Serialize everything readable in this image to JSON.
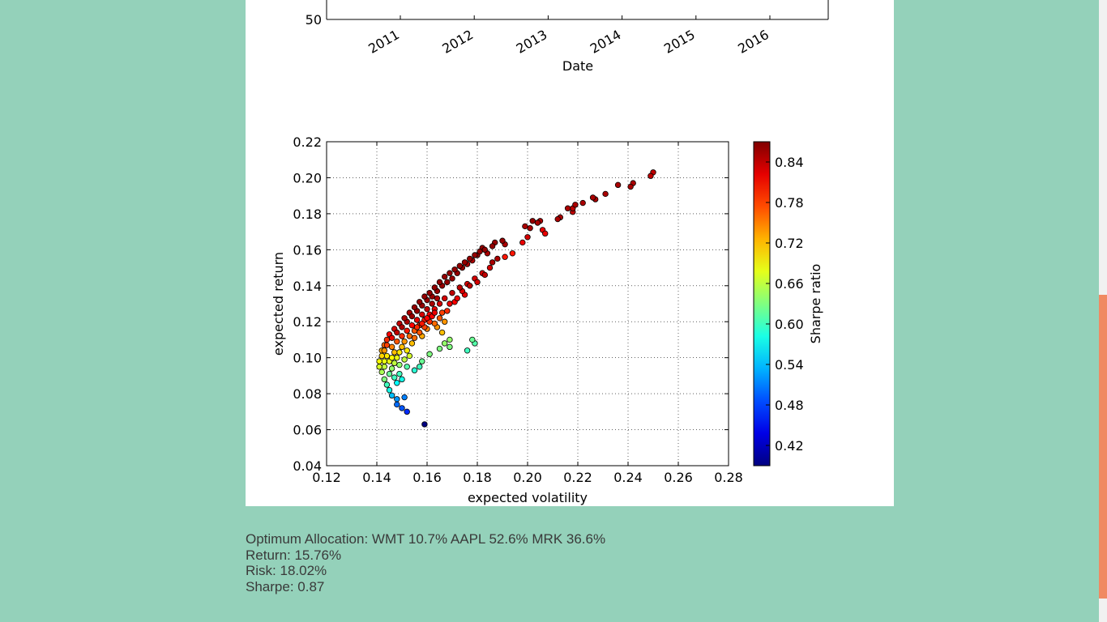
{
  "chart_data": [
    {
      "type": "line",
      "xlabel": "Date",
      "x_tick_labels": [
        "2011",
        "2012",
        "2013",
        "2014",
        "2015",
        "2016"
      ],
      "y_tick_labels": [
        "50"
      ],
      "note": "partially visible chart, scrolled above the viewport"
    },
    {
      "type": "scatter",
      "xlabel": "expected volatility",
      "ylabel": "expected return",
      "xlim": [
        0.12,
        0.28
      ],
      "ylim": [
        0.04,
        0.22
      ],
      "x_ticks": [
        "0.12",
        "0.14",
        "0.16",
        "0.18",
        "0.20",
        "0.22",
        "0.24",
        "0.26",
        "0.28"
      ],
      "y_ticks": [
        "0.04",
        "0.06",
        "0.08",
        "0.10",
        "0.12",
        "0.14",
        "0.16",
        "0.18",
        "0.20",
        "0.22"
      ],
      "grid": true,
      "colorbar": {
        "label": "Sharpe ratio",
        "min": 0.39,
        "max": 0.87,
        "colormap": "jet",
        "ticks": [
          "0.42",
          "0.48",
          "0.54",
          "0.60",
          "0.66",
          "0.72",
          "0.78",
          "0.84"
        ]
      },
      "points": [
        [
          0.25,
          0.203,
          0.84
        ],
        [
          0.249,
          0.201,
          0.84
        ],
        [
          0.242,
          0.197,
          0.85
        ],
        [
          0.241,
          0.195,
          0.85
        ],
        [
          0.236,
          0.196,
          0.85
        ],
        [
          0.231,
          0.191,
          0.85
        ],
        [
          0.227,
          0.188,
          0.85
        ],
        [
          0.226,
          0.189,
          0.85
        ],
        [
          0.222,
          0.186,
          0.85
        ],
        [
          0.219,
          0.185,
          0.85
        ],
        [
          0.218,
          0.181,
          0.84
        ],
        [
          0.218,
          0.183,
          0.84
        ],
        [
          0.216,
          0.183,
          0.85
        ],
        [
          0.213,
          0.178,
          0.85
        ],
        [
          0.212,
          0.177,
          0.85
        ],
        [
          0.206,
          0.171,
          0.82
        ],
        [
          0.207,
          0.169,
          0.82
        ],
        [
          0.205,
          0.176,
          0.85
        ],
        [
          0.204,
          0.175,
          0.85
        ],
        [
          0.202,
          0.176,
          0.86
        ],
        [
          0.201,
          0.172,
          0.85
        ],
        [
          0.199,
          0.173,
          0.85
        ],
        [
          0.2,
          0.167,
          0.83
        ],
        [
          0.198,
          0.164,
          0.82
        ],
        [
          0.194,
          0.158,
          0.8
        ],
        [
          0.191,
          0.156,
          0.8
        ],
        [
          0.191,
          0.163,
          0.85
        ],
        [
          0.19,
          0.165,
          0.86
        ],
        [
          0.187,
          0.164,
          0.86
        ],
        [
          0.186,
          0.162,
          0.86
        ],
        [
          0.184,
          0.158,
          0.85
        ],
        [
          0.182,
          0.161,
          0.86
        ],
        [
          0.18,
          0.157,
          0.86
        ],
        [
          0.178,
          0.154,
          0.85
        ],
        [
          0.176,
          0.152,
          0.85
        ],
        [
          0.174,
          0.15,
          0.86
        ],
        [
          0.172,
          0.147,
          0.86
        ],
        [
          0.17,
          0.144,
          0.86
        ],
        [
          0.168,
          0.142,
          0.86
        ],
        [
          0.166,
          0.14,
          0.86
        ],
        [
          0.164,
          0.137,
          0.86
        ],
        [
          0.162,
          0.134,
          0.86
        ],
        [
          0.16,
          0.132,
          0.86
        ],
        [
          0.158,
          0.129,
          0.86
        ],
        [
          0.156,
          0.126,
          0.86
        ],
        [
          0.154,
          0.123,
          0.86
        ],
        [
          0.152,
          0.12,
          0.85
        ],
        [
          0.15,
          0.117,
          0.85
        ],
        [
          0.148,
          0.114,
          0.84
        ],
        [
          0.146,
          0.111,
          0.82
        ],
        [
          0.144,
          0.107,
          0.78
        ],
        [
          0.143,
          0.104,
          0.74
        ],
        [
          0.142,
          0.101,
          0.71
        ],
        [
          0.141,
          0.098,
          0.69
        ],
        [
          0.141,
          0.095,
          0.67
        ],
        [
          0.142,
          0.092,
          0.65
        ],
        [
          0.143,
          0.088,
          0.63
        ],
        [
          0.144,
          0.085,
          0.6
        ],
        [
          0.145,
          0.082,
          0.58
        ],
        [
          0.146,
          0.079,
          0.54
        ],
        [
          0.148,
          0.077,
          0.52
        ],
        [
          0.148,
          0.074,
          0.5
        ],
        [
          0.151,
          0.078,
          0.51
        ],
        [
          0.15,
          0.072,
          0.49
        ],
        [
          0.152,
          0.07,
          0.47
        ],
        [
          0.159,
          0.063,
          0.39
        ],
        [
          0.176,
          0.104,
          0.6
        ],
        [
          0.179,
          0.108,
          0.61
        ],
        [
          0.178,
          0.11,
          0.62
        ],
        [
          0.169,
          0.11,
          0.64
        ],
        [
          0.167,
          0.108,
          0.64
        ],
        [
          0.169,
          0.106,
          0.63
        ],
        [
          0.165,
          0.105,
          0.63
        ],
        [
          0.161,
          0.102,
          0.63
        ],
        [
          0.158,
          0.098,
          0.62
        ],
        [
          0.157,
          0.095,
          0.6
        ],
        [
          0.155,
          0.093,
          0.59
        ],
        [
          0.152,
          0.095,
          0.61
        ],
        [
          0.15,
          0.088,
          0.58
        ],
        [
          0.149,
          0.091,
          0.6
        ],
        [
          0.148,
          0.086,
          0.57
        ],
        [
          0.147,
          0.089,
          0.6
        ],
        [
          0.145,
          0.091,
          0.62
        ],
        [
          0.146,
          0.094,
          0.64
        ],
        [
          0.147,
          0.097,
          0.66
        ],
        [
          0.148,
          0.1,
          0.68
        ],
        [
          0.149,
          0.103,
          0.7
        ],
        [
          0.15,
          0.106,
          0.72
        ],
        [
          0.151,
          0.109,
          0.74
        ],
        [
          0.153,
          0.112,
          0.76
        ],
        [
          0.155,
          0.115,
          0.77
        ],
        [
          0.157,
          0.118,
          0.79
        ],
        [
          0.159,
          0.121,
          0.8
        ],
        [
          0.161,
          0.124,
          0.81
        ],
        [
          0.163,
          0.127,
          0.82
        ],
        [
          0.165,
          0.13,
          0.83
        ],
        [
          0.167,
          0.133,
          0.83
        ],
        [
          0.17,
          0.136,
          0.84
        ],
        [
          0.173,
          0.139,
          0.84
        ],
        [
          0.176,
          0.141,
          0.83
        ],
        [
          0.179,
          0.144,
          0.83
        ],
        [
          0.182,
          0.147,
          0.83
        ],
        [
          0.185,
          0.15,
          0.83
        ],
        [
          0.171,
          0.131,
          0.81
        ],
        [
          0.175,
          0.135,
          0.82
        ],
        [
          0.168,
          0.126,
          0.79
        ],
        [
          0.165,
          0.122,
          0.77
        ],
        [
          0.163,
          0.119,
          0.76
        ],
        [
          0.166,
          0.125,
          0.78
        ],
        [
          0.16,
          0.116,
          0.75
        ],
        [
          0.158,
          0.112,
          0.73
        ],
        [
          0.167,
          0.12,
          0.74
        ],
        [
          0.166,
          0.114,
          0.72
        ],
        [
          0.164,
          0.117,
          0.74
        ],
        [
          0.154,
          0.108,
          0.72
        ],
        [
          0.152,
          0.104,
          0.7
        ],
        [
          0.153,
          0.101,
          0.67
        ],
        [
          0.151,
          0.099,
          0.66
        ],
        [
          0.149,
          0.096,
          0.64
        ],
        [
          0.145,
          0.098,
          0.68
        ],
        [
          0.144,
          0.101,
          0.7
        ],
        [
          0.143,
          0.095,
          0.66
        ],
        [
          0.143,
          0.098,
          0.68
        ],
        [
          0.142,
          0.104,
          0.73
        ],
        [
          0.143,
          0.107,
          0.76
        ],
        [
          0.144,
          0.11,
          0.79
        ],
        [
          0.145,
          0.113,
          0.81
        ],
        [
          0.147,
          0.116,
          0.83
        ],
        [
          0.149,
          0.119,
          0.84
        ],
        [
          0.151,
          0.122,
          0.85
        ],
        [
          0.153,
          0.125,
          0.85
        ],
        [
          0.155,
          0.128,
          0.86
        ],
        [
          0.157,
          0.131,
          0.86
        ],
        [
          0.159,
          0.134,
          0.86
        ],
        [
          0.161,
          0.136,
          0.86
        ],
        [
          0.163,
          0.139,
          0.86
        ],
        [
          0.165,
          0.142,
          0.86
        ],
        [
          0.167,
          0.145,
          0.86
        ],
        [
          0.169,
          0.147,
          0.86
        ],
        [
          0.171,
          0.149,
          0.86
        ],
        [
          0.173,
          0.151,
          0.86
        ],
        [
          0.175,
          0.153,
          0.86
        ],
        [
          0.177,
          0.155,
          0.86
        ],
        [
          0.179,
          0.157,
          0.86
        ],
        [
          0.181,
          0.159,
          0.86
        ],
        [
          0.183,
          0.16,
          0.86
        ],
        [
          0.156,
          0.121,
          0.82
        ],
        [
          0.158,
          0.124,
          0.83
        ],
        [
          0.16,
          0.127,
          0.84
        ],
        [
          0.162,
          0.13,
          0.85
        ],
        [
          0.164,
          0.133,
          0.85
        ],
        [
          0.154,
          0.118,
          0.81
        ],
        [
          0.152,
          0.115,
          0.8
        ],
        [
          0.15,
          0.112,
          0.79
        ],
        [
          0.148,
          0.109,
          0.77
        ],
        [
          0.146,
          0.106,
          0.75
        ],
        [
          0.146,
          0.1,
          0.69
        ],
        [
          0.147,
          0.103,
          0.72
        ],
        [
          0.156,
          0.117,
          0.79
        ],
        [
          0.158,
          0.119,
          0.8
        ],
        [
          0.162,
          0.123,
          0.81
        ],
        [
          0.169,
          0.13,
          0.82
        ],
        [
          0.172,
          0.133,
          0.82
        ],
        [
          0.174,
          0.137,
          0.83
        ],
        [
          0.177,
          0.14,
          0.84
        ],
        [
          0.18,
          0.142,
          0.83
        ],
        [
          0.183,
          0.146,
          0.84
        ],
        [
          0.186,
          0.153,
          0.85
        ],
        [
          0.188,
          0.155,
          0.85
        ],
        [
          0.161,
          0.12,
          0.79
        ],
        [
          0.159,
          0.117,
          0.78
        ],
        [
          0.157,
          0.114,
          0.77
        ],
        [
          0.155,
          0.111,
          0.76
        ],
        [
          0.163,
          0.125,
          0.82
        ],
        [
          0.16,
          0.122,
          0.81
        ]
      ]
    }
  ],
  "results": {
    "allocation": "Optimum Allocation: WMT 10.7% AAPL 52.6% MRK 36.6%",
    "return": "Return: 15.76%",
    "risk": "Risk: 18.02%",
    "sharpe": "Sharpe: 0.87"
  },
  "colors": {
    "page_background": "#94d1ba",
    "panel_background": "#ffffff",
    "scrollbar_thumb": "#f08a62",
    "text": "#3a3a3a"
  }
}
